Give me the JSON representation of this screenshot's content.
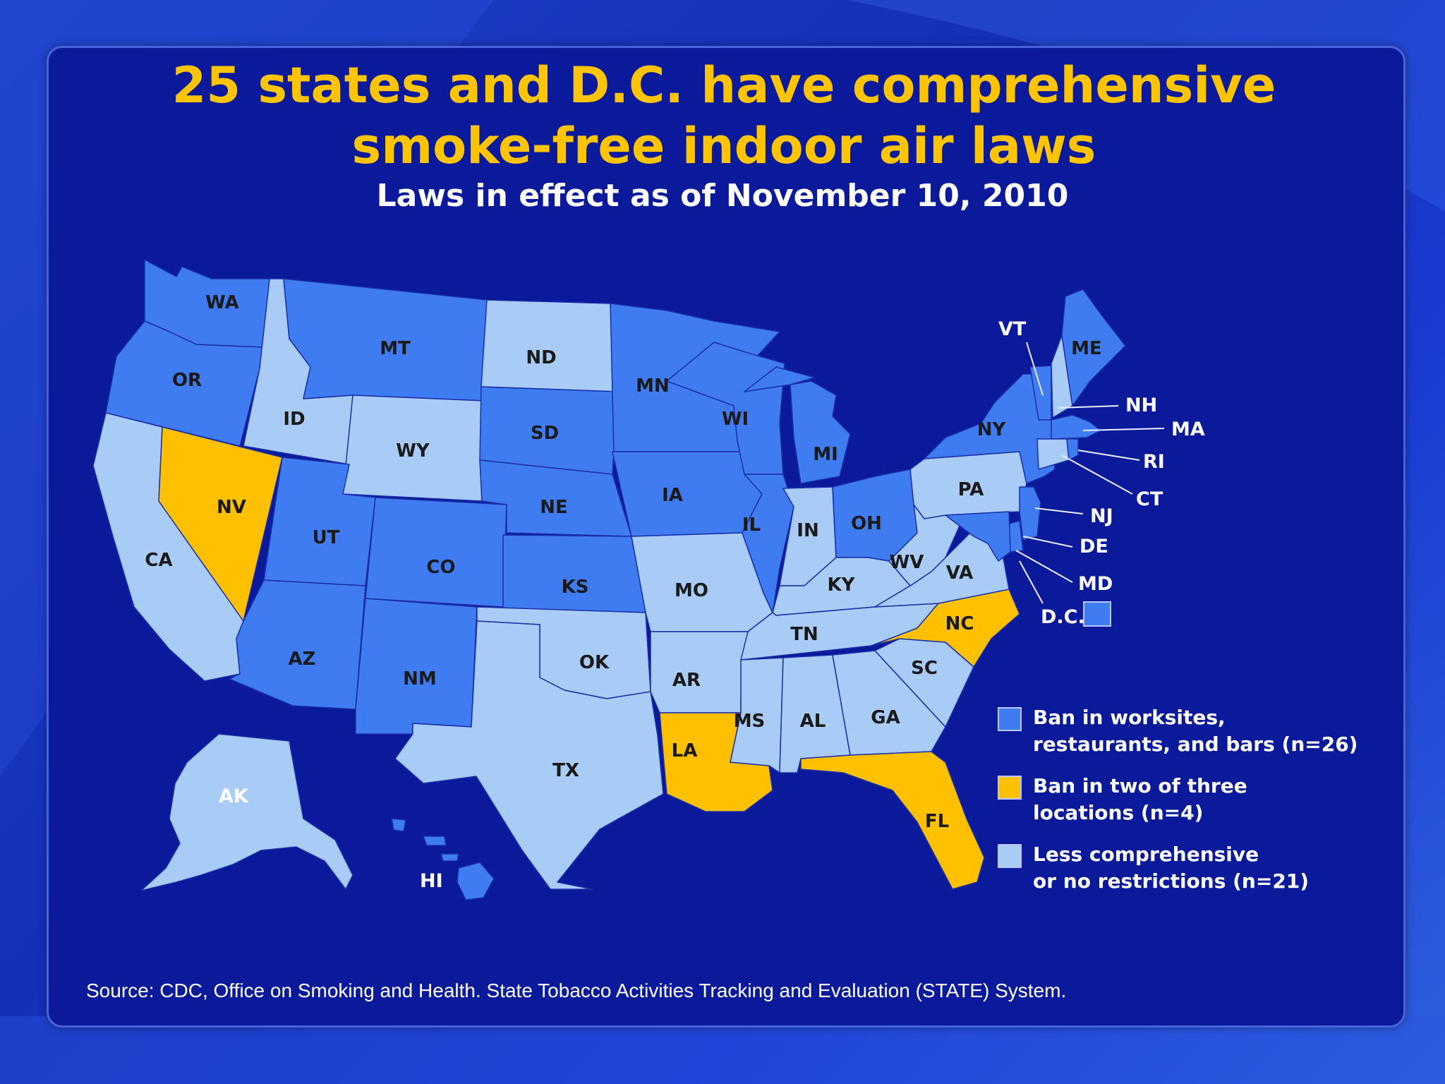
{
  "colors": {
    "comprehensive": "#3f7cf2",
    "partial": "#ffc000",
    "less": "#a9ccf7",
    "title": "#ffc400",
    "panel": "#0a1a9a"
  },
  "title_line1": "25 states and D.C. have comprehensive",
  "title_line2": "smoke-free indoor air laws",
  "subtitle": "Laws in effect as of November 10,  2010",
  "legend": [
    {
      "category": "comprehensive",
      "line1": "Ban in worksites,",
      "line2": "restaurants, and bars (n=26)"
    },
    {
      "category": "partial",
      "line1": "Ban in two of three",
      "line2": "locations (n=4)"
    },
    {
      "category": "less",
      "line1": "Less comprehensive",
      "line2": "or no restrictions (n=21)"
    }
  ],
  "states": [
    {
      "abbr": "WA",
      "category": "comprehensive"
    },
    {
      "abbr": "OR",
      "category": "comprehensive"
    },
    {
      "abbr": "CA",
      "category": "less"
    },
    {
      "abbr": "ID",
      "category": "less"
    },
    {
      "abbr": "NV",
      "category": "partial"
    },
    {
      "abbr": "MT",
      "category": "comprehensive"
    },
    {
      "abbr": "WY",
      "category": "less"
    },
    {
      "abbr": "UT",
      "category": "comprehensive"
    },
    {
      "abbr": "AZ",
      "category": "comprehensive"
    },
    {
      "abbr": "CO",
      "category": "comprehensive"
    },
    {
      "abbr": "NM",
      "category": "comprehensive"
    },
    {
      "abbr": "ND",
      "category": "less"
    },
    {
      "abbr": "SD",
      "category": "comprehensive"
    },
    {
      "abbr": "NE",
      "category": "comprehensive"
    },
    {
      "abbr": "KS",
      "category": "comprehensive"
    },
    {
      "abbr": "OK",
      "category": "less"
    },
    {
      "abbr": "TX",
      "category": "less"
    },
    {
      "abbr": "MN",
      "category": "comprehensive"
    },
    {
      "abbr": "IA",
      "category": "comprehensive"
    },
    {
      "abbr": "MO",
      "category": "less"
    },
    {
      "abbr": "AR",
      "category": "less"
    },
    {
      "abbr": "LA",
      "category": "partial"
    },
    {
      "abbr": "WI",
      "category": "comprehensive"
    },
    {
      "abbr": "IL",
      "category": "comprehensive"
    },
    {
      "abbr": "MI",
      "category": "comprehensive"
    },
    {
      "abbr": "IN",
      "category": "less"
    },
    {
      "abbr": "OH",
      "category": "comprehensive"
    },
    {
      "abbr": "KY",
      "category": "less"
    },
    {
      "abbr": "TN",
      "category": "less"
    },
    {
      "abbr": "MS",
      "category": "less"
    },
    {
      "abbr": "AL",
      "category": "less"
    },
    {
      "abbr": "GA",
      "category": "less"
    },
    {
      "abbr": "FL",
      "category": "partial"
    },
    {
      "abbr": "SC",
      "category": "less"
    },
    {
      "abbr": "NC",
      "category": "partial"
    },
    {
      "abbr": "VA",
      "category": "less"
    },
    {
      "abbr": "WV",
      "category": "less"
    },
    {
      "abbr": "PA",
      "category": "less"
    },
    {
      "abbr": "NY",
      "category": "comprehensive"
    },
    {
      "abbr": "VT",
      "category": "comprehensive"
    },
    {
      "abbr": "ME",
      "category": "comprehensive"
    },
    {
      "abbr": "NH",
      "category": "less"
    },
    {
      "abbr": "MA",
      "category": "comprehensive"
    },
    {
      "abbr": "RI",
      "category": "comprehensive"
    },
    {
      "abbr": "CT",
      "category": "less"
    },
    {
      "abbr": "NJ",
      "category": "comprehensive"
    },
    {
      "abbr": "DE",
      "category": "comprehensive"
    },
    {
      "abbr": "MD",
      "category": "comprehensive"
    },
    {
      "abbr": "D.C.",
      "category": "comprehensive"
    },
    {
      "abbr": "AK",
      "category": "less"
    },
    {
      "abbr": "HI",
      "category": "comprehensive"
    }
  ],
  "source": "Source: CDC, Office on Smoking and Health. State Tobacco Activities Tracking and Evaluation (STATE) System."
}
